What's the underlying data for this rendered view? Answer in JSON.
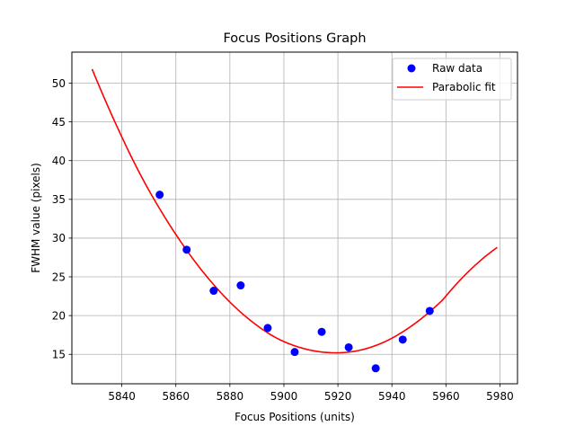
{
  "chart_data": {
    "type": "scatter",
    "title": "Focus Positions Graph",
    "xlabel": "Focus Positions (units)",
    "ylabel": "FWHM value (pixels)",
    "xlim": [
      5821.5,
      5986.5
    ],
    "ylim": [
      11.2,
      54.0
    ],
    "xticks": [
      5840,
      5860,
      5880,
      5900,
      5920,
      5940,
      5960,
      5980
    ],
    "yticks": [
      15,
      20,
      25,
      30,
      35,
      40,
      45,
      50
    ],
    "grid": true,
    "legend_position": "top-right",
    "series": [
      {
        "name": "Raw data",
        "kind": "scatter",
        "color": "#0000ff",
        "x": [
          5854,
          5864,
          5874,
          5884,
          5894,
          5904,
          5914,
          5924,
          5934,
          5944,
          5954
        ],
        "y": [
          35.6,
          28.5,
          23.2,
          23.9,
          18.4,
          15.3,
          17.9,
          15.9,
          13.2,
          16.9,
          20.6
        ]
      },
      {
        "name": "Parabolic fit",
        "kind": "line",
        "color": "#ff0000",
        "x": [
          5829,
          5839,
          5849,
          5859,
          5869,
          5879,
          5889,
          5899,
          5909,
          5919,
          5929,
          5939,
          5949,
          5959,
          5969,
          5979
        ],
        "y": [
          51.8,
          43.8,
          36.8,
          31.0,
          26.1,
          22.1,
          19.0,
          16.8,
          15.6,
          15.2,
          15.6,
          16.9,
          19.1,
          22.1,
          25.9,
          28.8
        ]
      }
    ]
  }
}
